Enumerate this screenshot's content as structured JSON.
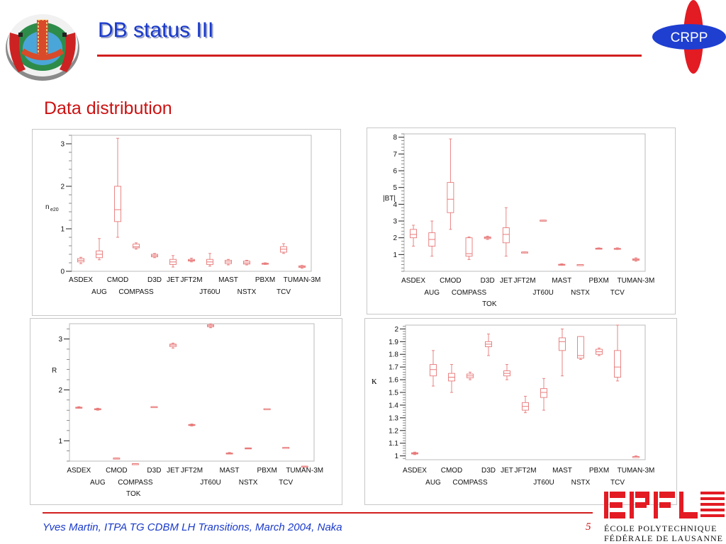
{
  "slide": {
    "title": "DB status III",
    "subtitle": "Data distribution",
    "footer": "Yves Martin, ITPA TG CDBM LH Transitions, March 2004, Naka",
    "page_number": "5",
    "crpp_logo_text": "CRPP",
    "epfl_line1": "ÉCOLE POLYTECHNIQUE",
    "epfl_line2": "FÉDÉRALE DE LAUSANNE",
    "accent_color": "#1a3acb",
    "rule_color": "#d21e1e",
    "box_color": "#e87878"
  },
  "chart_data": [
    {
      "type": "box",
      "ylabel": "n",
      "ylabel_sub": "e20",
      "ylim": [
        0,
        3.2
      ],
      "yticks": [
        0,
        1,
        2,
        3
      ],
      "categories": [
        "ASDEX",
        "AUG",
        "CMOD",
        "COMPASS",
        "D3D",
        "JET",
        "JFT2M",
        "JT60U",
        "MAST",
        "NSTX",
        "PBXM",
        "TCV",
        "TUMAN-3M"
      ],
      "label_row1": [
        "ASDEX",
        "CMOD",
        "D3D",
        "JET",
        "JFT2M",
        "MAST",
        "PBXM",
        "TUMAN-3M"
      ],
      "label_row2": [
        "AUG",
        "COMPASS",
        "JT60U",
        "NSTX",
        "TCV"
      ],
      "xlabel": "",
      "boxes": [
        {
          "min": 0.18,
          "q1": 0.22,
          "median": 0.26,
          "q3": 0.3,
          "max": 0.33
        },
        {
          "min": 0.27,
          "q1": 0.32,
          "median": 0.4,
          "q3": 0.48,
          "max": 0.77
        },
        {
          "min": 0.8,
          "q1": 1.17,
          "median": 1.45,
          "q3": 2.0,
          "max": 3.13
        },
        {
          "min": 0.52,
          "q1": 0.55,
          "median": 0.58,
          "q3": 0.64,
          "max": 0.67
        },
        {
          "min": 0.32,
          "q1": 0.34,
          "median": 0.37,
          "q3": 0.4,
          "max": 0.42
        },
        {
          "min": 0.1,
          "q1": 0.16,
          "median": 0.22,
          "q3": 0.28,
          "max": 0.37
        },
        {
          "min": 0.22,
          "q1": 0.24,
          "median": 0.26,
          "q3": 0.28,
          "max": 0.31
        },
        {
          "min": 0.12,
          "q1": 0.16,
          "median": 0.22,
          "q3": 0.28,
          "max": 0.42
        },
        {
          "min": 0.15,
          "q1": 0.18,
          "median": 0.22,
          "q3": 0.26,
          "max": 0.28
        },
        {
          "min": 0.15,
          "q1": 0.17,
          "median": 0.2,
          "q3": 0.24,
          "max": 0.26
        },
        {
          "min": 0.16,
          "q1": 0.17,
          "median": 0.18,
          "q3": 0.19,
          "max": 0.2
        },
        {
          "min": 0.42,
          "q1": 0.45,
          "median": 0.52,
          "q3": 0.58,
          "max": 0.65
        },
        {
          "min": 0.07,
          "q1": 0.09,
          "median": 0.11,
          "q3": 0.13,
          "max": 0.14
        }
      ]
    },
    {
      "type": "box",
      "ylabel": "|BT|",
      "ylabel_sub": "",
      "ylim": [
        0,
        8.2
      ],
      "yticks": [
        1,
        2,
        3,
        4,
        5,
        6,
        7,
        8
      ],
      "categories": [
        "ASDEX",
        "AUG",
        "CMOD",
        "COMPASS",
        "D3D",
        "JET",
        "JFT2M",
        "JT60U",
        "MAST",
        "NSTX",
        "PBXM",
        "TCV",
        "TUMAN-3M"
      ],
      "label_row1": [
        "ASDEX",
        "CMOD",
        "D3D",
        "JET",
        "JFT2M",
        "MAST",
        "PBXM",
        "TUMAN-3M"
      ],
      "label_row2": [
        "AUG",
        "COMPASS",
        "JT60U",
        "NSTX",
        "TCV"
      ],
      "xlabel": "TOK",
      "boxes": [
        {
          "min": 1.5,
          "q1": 2.0,
          "median": 2.2,
          "q3": 2.5,
          "max": 2.75
        },
        {
          "min": 0.9,
          "q1": 1.5,
          "median": 1.9,
          "q3": 2.3,
          "max": 3.0
        },
        {
          "min": 2.5,
          "q1": 3.5,
          "median": 4.3,
          "q3": 5.3,
          "max": 7.9
        },
        {
          "min": 0.7,
          "q1": 0.9,
          "median": 1.05,
          "q3": 2.0,
          "max": 2.05
        },
        {
          "min": 1.9,
          "q1": 1.95,
          "median": 2.0,
          "q3": 2.05,
          "max": 2.1
        },
        {
          "min": 0.9,
          "q1": 1.7,
          "median": 2.2,
          "q3": 2.6,
          "max": 3.8
        },
        {
          "min": 1.15,
          "q1": 1.15,
          "median": 1.15,
          "q3": 1.15,
          "max": 1.15
        },
        {
          "min": 3.05,
          "q1": 3.05,
          "median": 3.05,
          "q3": 3.05,
          "max": 3.05
        },
        {
          "min": 0.35,
          "q1": 0.38,
          "median": 0.4,
          "q3": 0.42,
          "max": 0.45
        },
        {
          "min": 0.4,
          "q1": 0.4,
          "median": 0.4,
          "q3": 0.4,
          "max": 0.4
        },
        {
          "min": 1.35,
          "q1": 1.35,
          "median": 1.35,
          "q3": 1.38,
          "max": 1.4
        },
        {
          "min": 1.3,
          "q1": 1.32,
          "median": 1.35,
          "q3": 1.37,
          "max": 1.4
        },
        {
          "min": 0.6,
          "q1": 0.65,
          "median": 0.7,
          "q3": 0.75,
          "max": 0.8
        }
      ]
    },
    {
      "type": "box",
      "ylabel": "R",
      "ylabel_sub": "",
      "ylim": [
        0.6,
        3.3
      ],
      "yticks": [
        1,
        2,
        3
      ],
      "categories": [
        "ASDEX",
        "AUG",
        "CMOD",
        "COMPASS",
        "D3D",
        "JET",
        "JFT2M",
        "JT60U",
        "MAST",
        "NSTX",
        "PBXM",
        "TCV",
        "TUMAN-3M"
      ],
      "label_row1": [
        "ASDEX",
        "CMOD",
        "D3D",
        "JET",
        "JFT2M",
        "MAST",
        "PBXM",
        "TUMAN-3M"
      ],
      "label_row2": [
        "AUG",
        "COMPASS",
        "JT60U",
        "NSTX",
        "TCV"
      ],
      "xlabel": "TOK",
      "boxes": [
        {
          "min": 1.64,
          "q1": 1.65,
          "median": 1.65,
          "q3": 1.66,
          "max": 1.67
        },
        {
          "min": 1.6,
          "q1": 1.61,
          "median": 1.62,
          "q3": 1.63,
          "max": 1.64
        },
        {
          "min": 0.66,
          "q1": 0.66,
          "median": 0.66,
          "q3": 0.66,
          "max": 0.66
        },
        {
          "min": 0.55,
          "q1": 0.55,
          "median": 0.55,
          "q3": 0.55,
          "max": 0.55
        },
        {
          "min": 1.67,
          "q1": 1.67,
          "median": 1.67,
          "q3": 1.67,
          "max": 1.67
        },
        {
          "min": 2.82,
          "q1": 2.85,
          "median": 2.88,
          "q3": 2.9,
          "max": 2.92
        },
        {
          "min": 1.29,
          "q1": 1.3,
          "median": 1.31,
          "q3": 1.32,
          "max": 1.33
        },
        {
          "min": 3.22,
          "q1": 3.24,
          "median": 3.26,
          "q3": 3.28,
          "max": 3.3
        },
        {
          "min": 0.74,
          "q1": 0.75,
          "median": 0.75,
          "q3": 0.76,
          "max": 0.77
        },
        {
          "min": 0.85,
          "q1": 0.85,
          "median": 0.85,
          "q3": 0.86,
          "max": 0.86
        },
        {
          "min": 1.63,
          "q1": 1.63,
          "median": 1.63,
          "q3": 1.63,
          "max": 1.63
        },
        {
          "min": 0.87,
          "q1": 0.87,
          "median": 0.87,
          "q3": 0.87,
          "max": 0.87
        },
        {
          "min": 0.5,
          "q1": 0.5,
          "median": 0.5,
          "q3": 0.5,
          "max": 0.5
        }
      ]
    },
    {
      "type": "box",
      "ylabel": "κ",
      "ylabel_sub": "",
      "ylim": [
        0.97,
        2.03
      ],
      "yticks": [
        1,
        1.1,
        1.2,
        1.3,
        1.4,
        1.5,
        1.6,
        1.7,
        1.8,
        1.9,
        2
      ],
      "categories": [
        "ASDEX",
        "AUG",
        "CMOD",
        "COMPASS",
        "D3D",
        "JET",
        "JFT2M",
        "JT60U",
        "MAST",
        "NSTX",
        "PBXM",
        "TCV",
        "TUMAN-3M"
      ],
      "label_row1": [
        "ASDEX",
        "CMOD",
        "D3D",
        "JET",
        "JFT2M",
        "MAST",
        "PBXM",
        "TUMAN-3M"
      ],
      "label_row2": [
        "AUG",
        "COMPASS",
        "JT60U",
        "NSTX",
        "TCV"
      ],
      "xlabel": "",
      "boxes": [
        {
          "min": 1.01,
          "q1": 1.015,
          "median": 1.02,
          "q3": 1.025,
          "max": 1.03
        },
        {
          "min": 1.55,
          "q1": 1.63,
          "median": 1.68,
          "q3": 1.72,
          "max": 1.83
        },
        {
          "min": 1.5,
          "q1": 1.59,
          "median": 1.62,
          "q3": 1.65,
          "max": 1.72
        },
        {
          "min": 1.6,
          "q1": 1.615,
          "median": 1.63,
          "q3": 1.645,
          "max": 1.66
        },
        {
          "min": 1.79,
          "q1": 1.86,
          "median": 1.88,
          "q3": 1.9,
          "max": 1.96
        },
        {
          "min": 1.6,
          "q1": 1.63,
          "median": 1.65,
          "q3": 1.67,
          "max": 1.72
        },
        {
          "min": 1.34,
          "q1": 1.36,
          "median": 1.39,
          "q3": 1.42,
          "max": 1.47
        },
        {
          "min": 1.36,
          "q1": 1.46,
          "median": 1.5,
          "q3": 1.53,
          "max": 1.61
        },
        {
          "min": 1.63,
          "q1": 1.83,
          "median": 1.9,
          "q3": 1.93,
          "max": 2.0
        },
        {
          "min": 1.76,
          "q1": 1.77,
          "median": 1.79,
          "q3": 1.94,
          "max": 1.94
        },
        {
          "min": 1.79,
          "q1": 1.8,
          "median": 1.82,
          "q3": 1.84,
          "max": 1.85
        },
        {
          "min": 1.59,
          "q1": 1.62,
          "median": 1.7,
          "q3": 1.83,
          "max": 2.03
        },
        {
          "min": 0.99,
          "q1": 0.995,
          "median": 0.995,
          "q3": 0.995,
          "max": 1.0
        }
      ]
    }
  ]
}
